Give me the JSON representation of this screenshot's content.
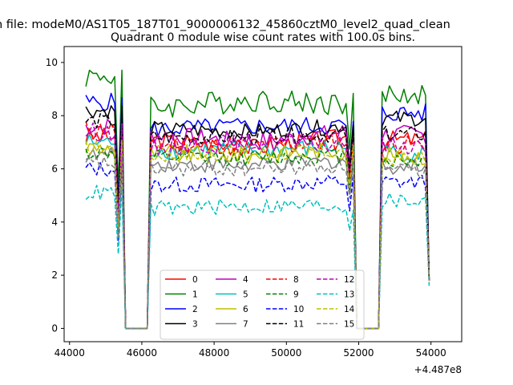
{
  "figure": {
    "suptitle": "n file: modeM0/AS1T05_187T01_9000006132_45860cztM0_level2_quad_clean",
    "title": "Quadrant 0 module wise count rates with 100.0s bins.",
    "offset_label": "+4.487e8"
  },
  "chart_data": {
    "type": "line",
    "title": "Quadrant 0 module wise count rates with 100.0s bins.",
    "xlabel": "",
    "ylabel": "",
    "x_offset": 448700000,
    "xlim": [
      43850,
      54850
    ],
    "ylim": [
      -0.5,
      10.6
    ],
    "xticks": [
      44000,
      46000,
      48000,
      50000,
      52000,
      54000
    ],
    "yticks": [
      0,
      2,
      4,
      6,
      8,
      10
    ],
    "xtick_labels": [
      "44000",
      "46000",
      "48000",
      "50000",
      "52000",
      "54000"
    ],
    "ytick_labels": [
      "0",
      "2",
      "4",
      "6",
      "8",
      "10"
    ],
    "grid": false,
    "legend_placement": "bottom-center",
    "legend_columns": 4,
    "time_segments": [
      {
        "x_start": 44450,
        "x_end": 45450
      },
      {
        "x_start": 46250,
        "x_end": 51850
      },
      {
        "x_start": 52650,
        "x_end": 53950
      }
    ],
    "gap_points": [
      [
        45550,
        0
      ],
      [
        45650,
        0
      ],
      [
        45750,
        0
      ],
      [
        45850,
        0
      ],
      [
        45950,
        0
      ],
      [
        46050,
        0
      ],
      [
        46150,
        0
      ],
      [
        51950,
        0
      ],
      [
        52050,
        0
      ],
      [
        52150,
        0
      ],
      [
        52250,
        0
      ],
      [
        52350,
        0
      ],
      [
        52450,
        0
      ],
      [
        52550,
        0
      ]
    ],
    "series": [
      {
        "name": "0",
        "color": "#ff0000",
        "dash": "solid",
        "levels": [
          7.2,
          7.1,
          6.8,
          7.1,
          1.8
        ],
        "amplitude": 0.35
      },
      {
        "name": "1",
        "color": "#008000",
        "dash": "solid",
        "levels": [
          9.5,
          8.3,
          8.6,
          8.8,
          1.8
        ],
        "amplitude": 0.45
      },
      {
        "name": "2",
        "color": "#0000ff",
        "dash": "solid",
        "levels": [
          8.5,
          7.5,
          7.6,
          8.1,
          1.8
        ],
        "amplitude": 0.35
      },
      {
        "name": "3",
        "color": "#000000",
        "dash": "solid",
        "levels": [
          8.2,
          7.5,
          7.4,
          7.9,
          1.8
        ],
        "amplitude": 0.3
      },
      {
        "name": "4",
        "color": "#bf00bf",
        "dash": "solid",
        "levels": [
          7.6,
          7.3,
          7.0,
          7.3,
          1.8
        ],
        "amplitude": 0.35
      },
      {
        "name": "5",
        "color": "#00bfbf",
        "dash": "solid",
        "levels": [
          7.0,
          6.7,
          6.7,
          6.6,
          1.8
        ],
        "amplitude": 0.35
      },
      {
        "name": "6",
        "color": "#bfbf00",
        "dash": "solid",
        "levels": [
          6.8,
          6.6,
          6.5,
          6.5,
          1.8
        ],
        "amplitude": 0.35
      },
      {
        "name": "7",
        "color": "#808080",
        "dash": "solid",
        "levels": [
          6.5,
          6.2,
          6.1,
          6.1,
          1.8
        ],
        "amplitude": 0.3
      },
      {
        "name": "8",
        "color": "#ff0000",
        "dash": "dashed",
        "levels": [
          7.5,
          6.9,
          6.9,
          6.9,
          1.8
        ],
        "amplitude": 0.35
      },
      {
        "name": "9",
        "color": "#008000",
        "dash": "dashed",
        "levels": [
          6.6,
          6.4,
          6.4,
          6.3,
          1.8
        ],
        "amplitude": 0.3
      },
      {
        "name": "10",
        "color": "#0000ff",
        "dash": "dashed",
        "levels": [
          6.0,
          5.4,
          5.4,
          5.5,
          1.8
        ],
        "amplitude": 0.3
      },
      {
        "name": "11",
        "color": "#000000",
        "dash": "dashed",
        "levels": [
          7.8,
          7.2,
          7.2,
          7.3,
          1.8
        ],
        "amplitude": 0.3
      },
      {
        "name": "12",
        "color": "#bf00bf",
        "dash": "dashed",
        "levels": [
          7.4,
          6.8,
          7.0,
          6.9,
          1.8
        ],
        "amplitude": 0.35
      },
      {
        "name": "13",
        "color": "#00bfbf",
        "dash": "dashed",
        "levels": [
          5.1,
          4.5,
          4.6,
          4.8,
          1.6
        ],
        "amplitude": 0.3
      },
      {
        "name": "14",
        "color": "#bfbf00",
        "dash": "dashed",
        "levels": [
          6.8,
          6.5,
          6.6,
          6.4,
          1.8
        ],
        "amplitude": 0.3
      },
      {
        "name": "15",
        "color": "#808080",
        "dash": "dashed",
        "levels": [
          6.2,
          6.0,
          6.0,
          5.9,
          1.8
        ],
        "amplitude": 0.3
      }
    ]
  }
}
